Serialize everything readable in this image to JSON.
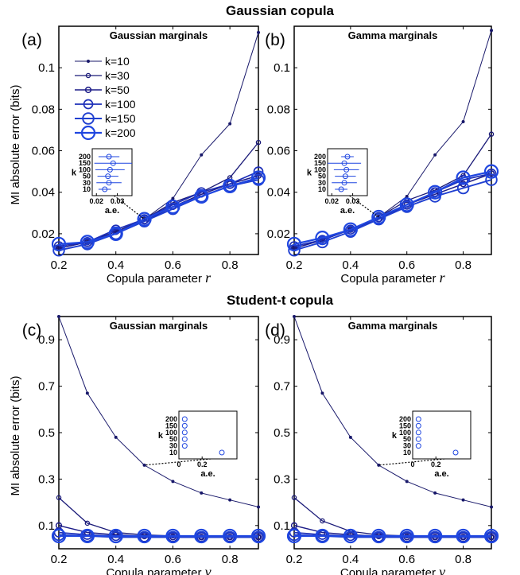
{
  "figure": {
    "top_title": "Gaussian copula",
    "bottom_title": "Student-t copula",
    "ylabel": "MI absolute error (bits)"
  },
  "legend": [
    "k=10",
    "k=30",
    "k=50",
    "k=100",
    "k=150",
    "k=200"
  ],
  "colors": {
    "k10": "#18186a",
    "k30": "#1a1a78",
    "k50": "#1c1c88",
    "k100": "#1d2fb8",
    "k150": "#1f3fd0",
    "k200": "#1f46e0",
    "axis": "#000000"
  },
  "chart_data": [
    {
      "type": "line",
      "letter": "(a)",
      "subtitle": "Gaussian marginals",
      "xlabel": "Copula parameter",
      "xsym": "r",
      "x": [
        0.2,
        0.3,
        0.4,
        0.5,
        0.6,
        0.7,
        0.8,
        0.9
      ],
      "xlim": [
        0.2,
        0.9
      ],
      "ylim": [
        0.01,
        0.12
      ],
      "xticks": [
        0.2,
        0.4,
        0.6,
        0.8
      ],
      "yticks": [
        0.02,
        0.04,
        0.06,
        0.08,
        0.1
      ],
      "ytick_labels": [
        "0.02",
        "0.04",
        "0.06",
        "0.08",
        "0.1"
      ],
      "series": [
        {
          "name": "k=10",
          "values": [
            0.013,
            0.016,
            0.021,
            0.027,
            0.037,
            0.058,
            0.073,
            0.117
          ]
        },
        {
          "name": "k=30",
          "values": [
            0.013,
            0.016,
            0.021,
            0.027,
            0.035,
            0.04,
            0.047,
            0.064
          ]
        },
        {
          "name": "k=50",
          "values": [
            0.013,
            0.016,
            0.021,
            0.026,
            0.033,
            0.039,
            0.044,
            0.048
          ]
        },
        {
          "name": "k=100",
          "values": [
            0.014,
            0.016,
            0.022,
            0.027,
            0.034,
            0.04,
            0.044,
            0.05
          ]
        },
        {
          "name": "k=150",
          "values": [
            0.012,
            0.015,
            0.02,
            0.026,
            0.032,
            0.038,
            0.043,
            0.046
          ]
        },
        {
          "name": "k=200",
          "values": [
            0.015,
            0.016,
            0.02,
            0.027,
            0.033,
            0.038,
            0.043,
            0.047
          ]
        }
      ],
      "inset": {
        "callout_x": 0.5,
        "k": [
          "200",
          "150",
          "100",
          "50",
          "30",
          "10"
        ],
        "xlim": [
          0.018,
          0.037
        ],
        "xticks": [
          0.02,
          0.03
        ],
        "xtick_labels": [
          "0.02",
          "0.03"
        ],
        "xlabel": "a.e.",
        "ylabel": "k",
        "means": [
          0.026,
          0.028,
          0.0265,
          0.0255,
          0.026,
          0.024
        ],
        "err": [
          0.005,
          0.009,
          0.007,
          0.005,
          0.006,
          0.003
        ]
      }
    },
    {
      "type": "line",
      "letter": "(b)",
      "subtitle": "Gamma marginals",
      "xlabel": "Copula parameter",
      "xsym": "r",
      "x": [
        0.2,
        0.3,
        0.4,
        0.5,
        0.6,
        0.7,
        0.8,
        0.9
      ],
      "xlim": [
        0.2,
        0.9
      ],
      "ylim": [
        0.01,
        0.12
      ],
      "xticks": [
        0.2,
        0.4,
        0.6,
        0.8
      ],
      "yticks": [
        0.02,
        0.04,
        0.06,
        0.08,
        0.1
      ],
      "ytick_labels": [
        "0.02",
        "0.04",
        "0.06",
        "0.08",
        "0.1"
      ],
      "series": [
        {
          "name": "k=10",
          "values": [
            0.013,
            0.017,
            0.022,
            0.028,
            0.038,
            0.058,
            0.074,
            0.118
          ]
        },
        {
          "name": "k=30",
          "values": [
            0.013,
            0.017,
            0.022,
            0.028,
            0.036,
            0.041,
            0.048,
            0.068
          ]
        },
        {
          "name": "k=50",
          "values": [
            0.013,
            0.017,
            0.022,
            0.027,
            0.034,
            0.039,
            0.044,
            0.049
          ]
        },
        {
          "name": "k=100",
          "values": [
            0.014,
            0.017,
            0.022,
            0.028,
            0.034,
            0.04,
            0.046,
            0.049
          ]
        },
        {
          "name": "k=150",
          "values": [
            0.012,
            0.016,
            0.021,
            0.027,
            0.033,
            0.038,
            0.042,
            0.046
          ]
        },
        {
          "name": "k=200",
          "values": [
            0.015,
            0.018,
            0.022,
            0.028,
            0.034,
            0.04,
            0.047,
            0.05
          ]
        }
      ],
      "inset": {
        "callout_x": 0.5,
        "k": [
          "200",
          "150",
          "100",
          "50",
          "30",
          "10"
        ],
        "xlim": [
          0.018,
          0.037
        ],
        "xticks": [
          0.02,
          0.03
        ],
        "xtick_labels": [
          "0.02",
          "0.03"
        ],
        "xlabel": "a.e.",
        "ylabel": "k",
        "means": [
          0.0275,
          0.026,
          0.027,
          0.0265,
          0.026,
          0.0245
        ],
        "err": [
          0.003,
          0.008,
          0.006,
          0.005,
          0.006,
          0.003
        ]
      }
    },
    {
      "type": "line",
      "letter": "(c)",
      "subtitle": "Gaussian marginals",
      "xlabel": "Copula parameter",
      "xsym": "ν",
      "x": [
        0.2,
        0.3,
        0.4,
        0.5,
        0.6,
        0.7,
        0.8,
        0.9
      ],
      "xlim": [
        0.2,
        0.9
      ],
      "ylim": [
        0.0,
        1.0
      ],
      "xticks": [
        0.2,
        0.4,
        0.6,
        0.8
      ],
      "yticks": [
        0.1,
        0.3,
        0.5,
        0.7,
        0.9
      ],
      "ytick_labels": [
        "0.1",
        "0.3",
        "0.5",
        "0.7",
        "0.9"
      ],
      "series": [
        {
          "name": "k=10",
          "values": [
            1.0,
            0.67,
            0.48,
            0.36,
            0.29,
            0.24,
            0.21,
            0.18
          ]
        },
        {
          "name": "k=30",
          "values": [
            0.22,
            0.11,
            0.07,
            0.06,
            0.055,
            0.05,
            0.05,
            0.05
          ]
        },
        {
          "name": "k=50",
          "values": [
            0.1,
            0.07,
            0.06,
            0.055,
            0.05,
            0.05,
            0.05,
            0.05
          ]
        },
        {
          "name": "k=100",
          "values": [
            0.07,
            0.06,
            0.055,
            0.05,
            0.05,
            0.05,
            0.05,
            0.05
          ]
        },
        {
          "name": "k=150",
          "values": [
            0.06,
            0.055,
            0.05,
            0.05,
            0.05,
            0.05,
            0.05,
            0.05
          ]
        },
        {
          "name": "k=200",
          "values": [
            0.055,
            0.055,
            0.055,
            0.055,
            0.055,
            0.055,
            0.055,
            0.055
          ]
        }
      ],
      "inset": {
        "callout_x": 0.5,
        "k": [
          "200",
          "150",
          "100",
          "50",
          "30",
          "10"
        ],
        "xlim": [
          0.0,
          0.5
        ],
        "xticks": [
          0.0,
          0.2
        ],
        "xtick_labels": [
          "0",
          "0.2"
        ],
        "xlabel": "a.e.",
        "ylabel": "k",
        "means": [
          0.05,
          0.05,
          0.05,
          0.05,
          0.05,
          0.37
        ],
        "err": [
          0,
          0,
          0,
          0,
          0,
          0
        ]
      }
    },
    {
      "type": "line",
      "letter": "(d)",
      "subtitle": "Gamma marginals",
      "xlabel": "Copula parameter",
      "xsym": "ν",
      "x": [
        0.2,
        0.3,
        0.4,
        0.5,
        0.6,
        0.7,
        0.8,
        0.9
      ],
      "xlim": [
        0.2,
        0.9
      ],
      "ylim": [
        0.0,
        1.0
      ],
      "xticks": [
        0.2,
        0.4,
        0.6,
        0.8
      ],
      "yticks": [
        0.1,
        0.3,
        0.5,
        0.7,
        0.9
      ],
      "ytick_labels": [
        "0.1",
        "0.3",
        "0.5",
        "0.7",
        "0.9"
      ],
      "series": [
        {
          "name": "k=10",
          "values": [
            1.0,
            0.67,
            0.48,
            0.36,
            0.29,
            0.24,
            0.21,
            0.18
          ]
        },
        {
          "name": "k=30",
          "values": [
            0.22,
            0.12,
            0.075,
            0.06,
            0.055,
            0.05,
            0.05,
            0.05
          ]
        },
        {
          "name": "k=50",
          "values": [
            0.1,
            0.07,
            0.06,
            0.055,
            0.05,
            0.05,
            0.05,
            0.05
          ]
        },
        {
          "name": "k=100",
          "values": [
            0.07,
            0.06,
            0.055,
            0.05,
            0.05,
            0.05,
            0.05,
            0.05
          ]
        },
        {
          "name": "k=150",
          "values": [
            0.06,
            0.055,
            0.05,
            0.05,
            0.05,
            0.05,
            0.05,
            0.05
          ]
        },
        {
          "name": "k=200",
          "values": [
            0.055,
            0.055,
            0.055,
            0.055,
            0.055,
            0.055,
            0.055,
            0.055
          ]
        }
      ],
      "inset": {
        "callout_x": 0.5,
        "k": [
          "200",
          "150",
          "100",
          "50",
          "30",
          "10"
        ],
        "xlim": [
          0.0,
          0.5
        ],
        "xticks": [
          0.0,
          0.2
        ],
        "xtick_labels": [
          "0",
          "0.2"
        ],
        "xlabel": "a.e.",
        "ylabel": "k",
        "means": [
          0.05,
          0.05,
          0.05,
          0.05,
          0.05,
          0.37
        ],
        "err": [
          0,
          0,
          0,
          0,
          0,
          0
        ]
      }
    }
  ]
}
